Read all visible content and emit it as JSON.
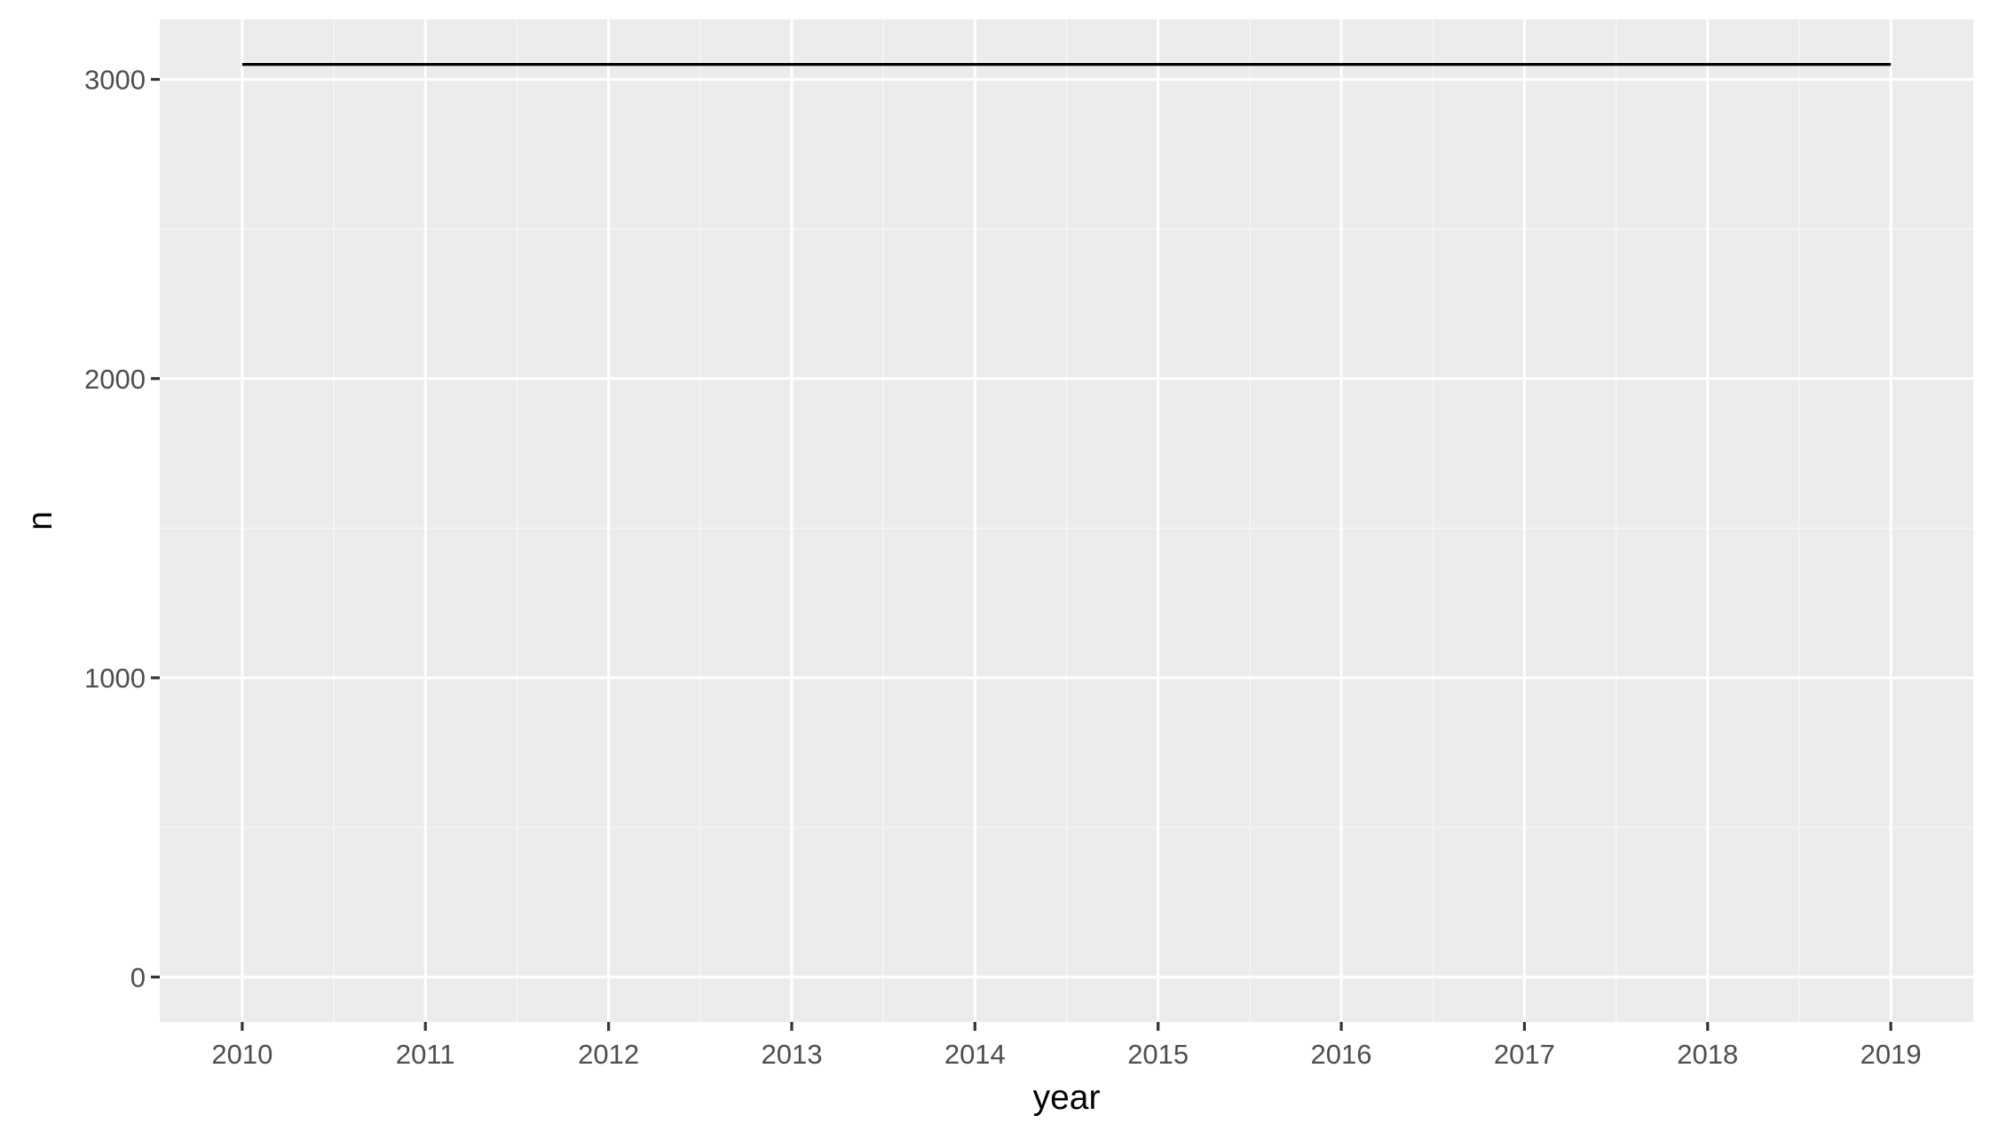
{
  "chart_data": {
    "type": "line",
    "title": "",
    "xlabel": "year",
    "ylabel": "n",
    "x": [
      2010,
      2011,
      2012,
      2013,
      2014,
      2015,
      2016,
      2017,
      2018,
      2019
    ],
    "series": [
      {
        "values": [
          3050,
          3050,
          3050,
          3050,
          3050,
          3050,
          3050,
          3050,
          3050,
          3050
        ]
      }
    ],
    "xlim": [
      2009.55,
      2019.45
    ],
    "ylim": [
      -150,
      3200
    ],
    "x_ticks": [
      "2010",
      "2011",
      "2012",
      "2013",
      "2014",
      "2015",
      "2016",
      "2017",
      "2018",
      "2019"
    ],
    "y_ticks": [
      "0",
      "1000",
      "2000",
      "3000"
    ],
    "grid": true,
    "legend": "none",
    "colors": {
      "panel_background": "#ebebeb",
      "grid_major": "#ffffff",
      "grid_minor": "#f5f5f5",
      "line": "#000000",
      "tick_text": "#4d4d4d",
      "axis_title": "#000000"
    }
  }
}
